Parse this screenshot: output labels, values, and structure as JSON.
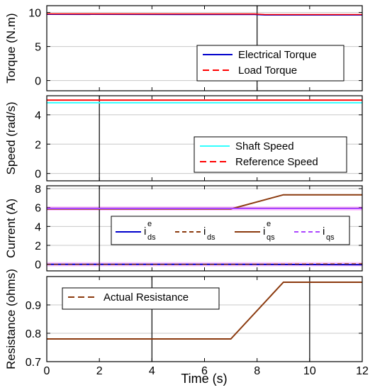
{
  "x_axis": {
    "label": "Time (s)",
    "ticks": [
      "0",
      "2",
      "4",
      "6",
      "8",
      "10",
      "12"
    ]
  },
  "colors": {
    "blue": "#0000cc",
    "red": "#ff0000",
    "cyan": "#33ffff",
    "brown": "#8b3a0e",
    "purple": "#aa44ff",
    "pink": "#ff66ff"
  },
  "chart_data": [
    {
      "type": "line",
      "ylabel": "Torque (N.m)",
      "ylim": [
        -1.5,
        11
      ],
      "yticks": [
        "0",
        "5",
        "10"
      ],
      "xlim": [
        0,
        12
      ],
      "legend_position": "bottom-right",
      "series": [
        {
          "name": "Electrical Torque",
          "x": [
            0,
            7.9,
            8.3,
            12
          ],
          "y": [
            9.75,
            9.72,
            9.65,
            9.65
          ]
        },
        {
          "name": "Load Torque",
          "x": [
            0,
            7.9,
            8.3,
            12
          ],
          "y": [
            9.8,
            9.78,
            9.7,
            9.7
          ]
        }
      ]
    },
    {
      "type": "line",
      "ylabel": "Speed (rad/s)",
      "ylim": [
        -0.5,
        5.3
      ],
      "yticks": [
        "0",
        "2",
        "4"
      ],
      "xlim": [
        0,
        12
      ],
      "legend_position": "bottom-right",
      "series": [
        {
          "name": "Shaft Speed",
          "x": [
            0,
            12
          ],
          "y": [
            4.82,
            4.82
          ]
        },
        {
          "name": "Reference Speed",
          "x": [
            0,
            12
          ],
          "y": [
            5.0,
            5.0
          ]
        }
      ]
    },
    {
      "type": "line",
      "ylabel": "Current (A)",
      "ylim": [
        -0.7,
        8.3
      ],
      "yticks": [
        "0",
        "2",
        "4",
        "6",
        "8"
      ],
      "xlim": [
        0,
        12
      ],
      "legend_position": "center",
      "legend": [
        {
          "main": "i",
          "sup": "e",
          "sub": "ds"
        },
        {
          "main": "i",
          "sup": "",
          "sub": "ds"
        },
        {
          "main": "i",
          "sup": "e",
          "sub": "qs"
        },
        {
          "main": "i",
          "sup": "",
          "sub": "qs"
        }
      ],
      "series": [
        {
          "x": [
            0,
            7,
            12
          ],
          "y": [
            0.0,
            0.0,
            -0.05
          ]
        },
        {
          "x": [
            0,
            7,
            12
          ],
          "y": [
            0.0,
            0.0,
            0.05
          ]
        },
        {
          "x": [
            0,
            7,
            9,
            12
          ],
          "y": [
            5.85,
            5.85,
            7.35,
            7.35
          ]
        },
        {
          "x": [
            0,
            12
          ],
          "y": [
            5.9,
            5.9
          ]
        }
      ]
    },
    {
      "type": "line",
      "ylabel": "Resistance (ohms)",
      "ylim": [
        0.7,
        1.0
      ],
      "yticks": [
        "0.7",
        "0.8",
        "0.9"
      ],
      "xlim": [
        0,
        12
      ],
      "legend_position": "top-left",
      "series": [
        {
          "name": "Actual Resistance",
          "x": [
            0,
            7,
            9,
            12
          ],
          "y": [
            0.78,
            0.78,
            0.98,
            0.98
          ]
        }
      ]
    }
  ]
}
